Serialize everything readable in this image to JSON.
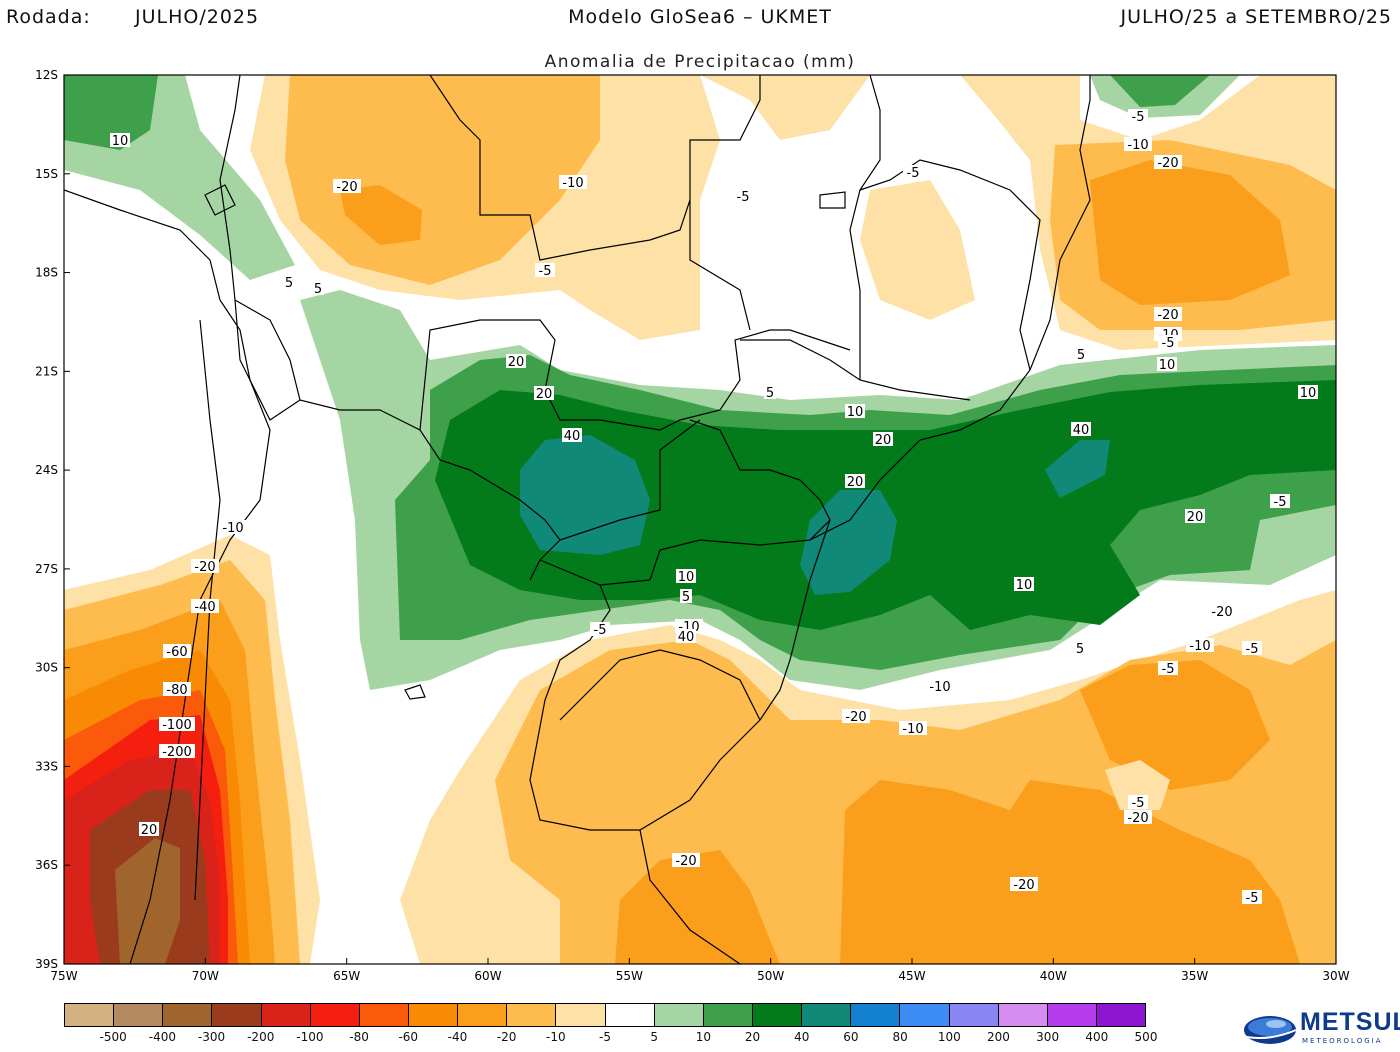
{
  "header": {
    "rodada_label": "Rodada:",
    "rodada_value": "JULHO/2025",
    "model": "Modelo GloSea6 – UKMET",
    "period": "JULHO/25 a SETEMBRO/25",
    "subtitle": "Anomalia de Precipitacao (mm)"
  },
  "axes": {
    "lat_labels": [
      "12S",
      "15S",
      "18S",
      "21S",
      "24S",
      "27S",
      "30S",
      "33S",
      "36S",
      "39S"
    ],
    "lon_labels": [
      "75W",
      "70W",
      "65W",
      "60W",
      "55W",
      "50W",
      "45W",
      "40W",
      "35W",
      "30W"
    ]
  },
  "contour_labels": [
    "10",
    "-20",
    "-10",
    "-5",
    "-5",
    "-5",
    "5",
    "-5",
    "-10",
    "-20",
    "5",
    "5",
    "-20",
    "-10",
    "-5",
    "10",
    "5",
    "20",
    "10",
    "40",
    "20",
    "40",
    "20",
    "10",
    "20",
    "-5",
    "-10",
    "-20",
    "-40",
    "-60",
    "-80",
    "-100",
    "-200",
    "20",
    "10",
    "5",
    "-5",
    "-10",
    "40",
    "20",
    "10",
    "5",
    "-10",
    "-20",
    "-5",
    "-10",
    "-5",
    "-10",
    "-5",
    "-20",
    "-20",
    "-20",
    "-5",
    "-10",
    "-20"
  ],
  "legend": {
    "labels": [
      "-500",
      "-400",
      "-300",
      "-200",
      "-100",
      "-80",
      "-60",
      "-40",
      "-20",
      "-10",
      "-5",
      "5",
      "10",
      "20",
      "40",
      "60",
      "80",
      "100",
      "200",
      "300",
      "400",
      "500"
    ],
    "colors": [
      "#d3b281",
      "#b58a60",
      "#a0652d",
      "#9a3b1d",
      "#d9231a",
      "#f51f0f",
      "#fa5a0a",
      "#f98b04",
      "#fb9e1b",
      "#fdbc4d",
      "#fde1a6",
      "#ffffff",
      "#a4d5a2",
      "#3ea04a",
      "#037b1a",
      "#108979",
      "#1480d0",
      "#3d8cf4",
      "#8985f3",
      "#d58ef0",
      "#b43cec",
      "#8f16d0"
    ]
  },
  "map_colors": {
    "pos5": "#a4d5a2",
    "pos10": "#3ea04a",
    "pos20": "#037b1a",
    "pos40": "#108979",
    "neg5": "#fde1a6",
    "neg10": "#fdbc4d",
    "neg20": "#fb9e1b",
    "neg40": "#f98b04",
    "neg60": "#fa5a0a",
    "neg80": "#f51f0f",
    "neg100": "#d9231a",
    "neg200": "#9a3b1d",
    "neg300": "#a0652d"
  },
  "logo": {
    "name": "METSUL",
    "sub": "METEOROLOGIA"
  }
}
